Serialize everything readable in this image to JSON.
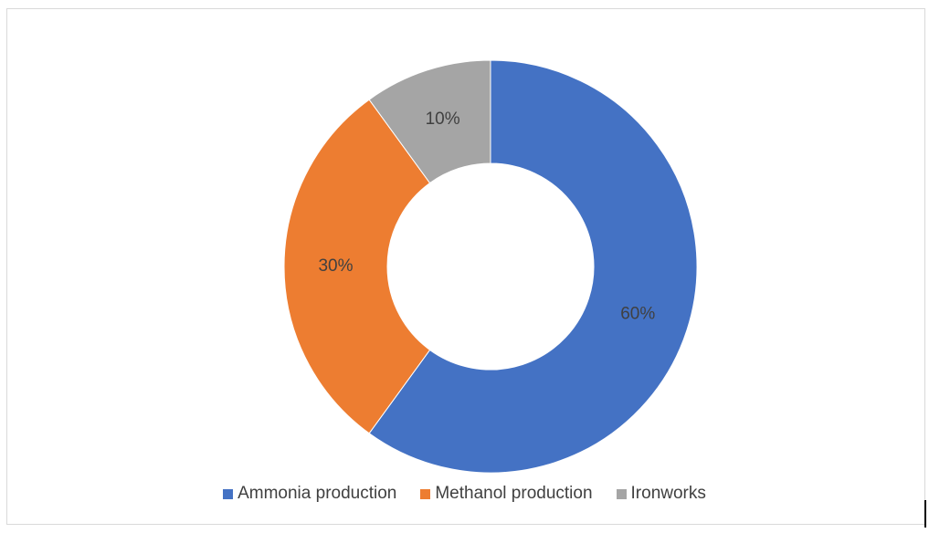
{
  "chart_data": {
    "type": "pie",
    "variant": "donut",
    "title": "",
    "slices": [
      {
        "name": "Ammonia production",
        "value": 60,
        "label": "60%",
        "color": "#4472C4"
      },
      {
        "name": "Methanol production",
        "value": 30,
        "label": "30%",
        "color": "#ED7D31"
      },
      {
        "name": "Ironworks",
        "value": 10,
        "label": "10%",
        "color": "#A5A5A5"
      }
    ],
    "legend_position": "bottom"
  }
}
